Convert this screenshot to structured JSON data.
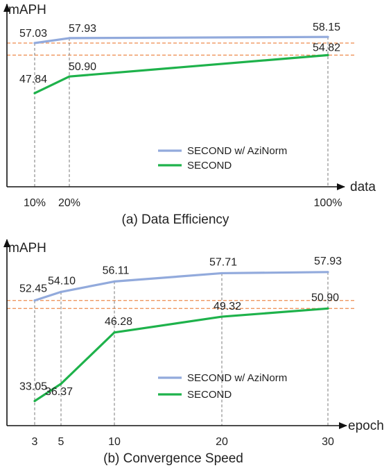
{
  "colors": {
    "azinorm": "#92aadc",
    "second": "#1eb24b",
    "axis": "#111111",
    "grid_dashed": "#777777",
    "ref_dashed": "#ed8a4c"
  },
  "chart_data": [
    {
      "type": "line",
      "title": "(a) Data Efficiency",
      "ylabel": "mAPH",
      "xlabel": "data",
      "x": [
        "10%",
        "20%",
        "100%"
      ],
      "x_numeric": [
        10,
        20,
        100
      ],
      "series": [
        {
          "name": "SECOND w/ AziNorm",
          "values": [
            57.03,
            57.93,
            58.15
          ],
          "labels": [
            "57.03",
            "57.93",
            "58.15"
          ]
        },
        {
          "name": "SECOND",
          "values": [
            47.84,
            50.9,
            54.82
          ],
          "labels": [
            "47.84",
            "50.90",
            "54.82"
          ]
        }
      ],
      "reference_lines": [
        57.03,
        54.82
      ],
      "legend_position": "lower-right",
      "grid": false
    },
    {
      "type": "line",
      "title": "(b) Convergence Speed",
      "ylabel": "mAPH",
      "xlabel": "epoch",
      "x": [
        "3",
        "5",
        "10",
        "20",
        "30"
      ],
      "x_numeric": [
        3,
        5,
        10,
        20,
        30
      ],
      "series": [
        {
          "name": "SECOND w/ AziNorm",
          "values": [
            52.45,
            54.1,
            56.11,
            57.71,
            57.93
          ],
          "labels": [
            "52.45",
            "54.10",
            "56.11",
            "57.71",
            "57.93"
          ]
        },
        {
          "name": "SECOND",
          "values": [
            33.05,
            36.37,
            46.28,
            49.32,
            50.9
          ],
          "labels": [
            "33.05",
            "36.37",
            "46.28",
            "49.32",
            "50.90"
          ]
        }
      ],
      "reference_lines": [
        52.45,
        50.9
      ],
      "legend_position": "lower-right",
      "grid": false
    }
  ]
}
